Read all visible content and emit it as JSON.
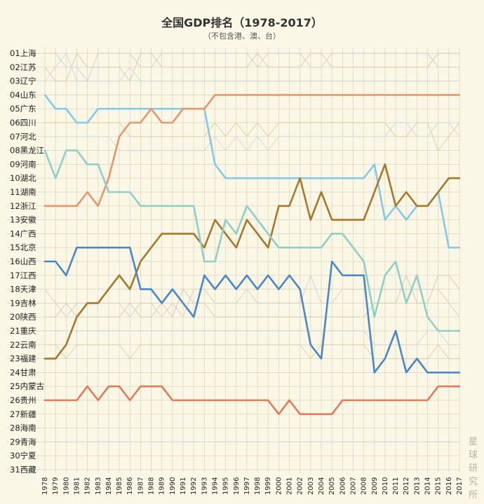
{
  "chart_data": {
    "type": "line",
    "title": "全国GDP排名（1978-2017）",
    "subtitle": "（不包含港、澳、台）",
    "x": [
      1978,
      1979,
      1980,
      1981,
      1982,
      1983,
      1984,
      1985,
      1986,
      1987,
      1988,
      1989,
      1990,
      1991,
      1992,
      1993,
      1994,
      1995,
      1996,
      1997,
      1998,
      1999,
      2000,
      2001,
      2002,
      2003,
      2004,
      2005,
      2006,
      2007,
      2008,
      2009,
      2010,
      2011,
      2012,
      2013,
      2014,
      2015,
      2016,
      2017
    ],
    "y_labels": [
      "01上海",
      "02江苏",
      "03辽宁",
      "04山东",
      "05广东",
      "06四川",
      "07河北",
      "08黑龙江",
      "09河南",
      "10湖北",
      "11湖南",
      "12浙江",
      "13安徽",
      "14广西",
      "15北京",
      "16山西",
      "17江西",
      "18天津",
      "19吉林",
      "20陕西",
      "21重庆",
      "22云南",
      "23福建",
      "24甘肃",
      "25内蒙古",
      "26贵州",
      "27新疆",
      "28海南",
      "29青海",
      "30宁夏",
      "31西藏"
    ],
    "ylim": [
      1,
      31
    ],
    "y_inverted": true,
    "grid": true,
    "series": [
      {
        "color": "#87c8e6",
        "values": [
          4,
          5,
          5,
          6,
          6,
          5,
          5,
          5,
          5,
          5,
          5,
          5,
          5,
          5,
          5,
          5,
          9,
          10,
          10,
          10,
          10,
          10,
          10,
          10,
          10,
          10,
          10,
          10,
          10,
          10,
          10,
          9,
          13,
          12,
          13,
          12,
          12,
          11,
          15,
          15
        ]
      },
      {
        "color": "#e8956c",
        "values": [
          12,
          12,
          12,
          12,
          11,
          12,
          10,
          7,
          6,
          6,
          5,
          6,
          6,
          5,
          5,
          5,
          4,
          4,
          4,
          4,
          4,
          4,
          4,
          4,
          4,
          4,
          4,
          4,
          4,
          4,
          4,
          4,
          4,
          4,
          4,
          4,
          4,
          4,
          4,
          4
        ]
      },
      {
        "color": "#a8782a",
        "values": [
          23,
          23,
          22,
          20,
          19,
          19,
          18,
          17,
          18,
          16,
          15,
          14,
          14,
          14,
          14,
          15,
          13,
          14,
          15,
          13,
          14,
          15,
          12,
          12,
          10,
          13,
          11,
          13,
          13,
          13,
          13,
          11,
          9,
          12,
          11,
          12,
          12,
          11,
          10,
          10
        ]
      },
      {
        "color": "#4a86c8",
        "values": [
          16,
          16,
          17,
          15,
          15,
          15,
          15,
          15,
          15,
          18,
          18,
          19,
          18,
          19,
          20,
          17,
          18,
          17,
          18,
          17,
          18,
          17,
          18,
          17,
          18,
          22,
          23,
          16,
          17,
          17,
          17,
          24,
          23,
          21,
          24,
          23,
          24,
          24,
          24,
          24
        ]
      },
      {
        "color": "#8fcfc6",
        "values": [
          8,
          10,
          8,
          8,
          9,
          9,
          11,
          11,
          11,
          12,
          12,
          12,
          12,
          12,
          12,
          16,
          16,
          13,
          14,
          12,
          13,
          14,
          15,
          15,
          15,
          15,
          15,
          14,
          14,
          15,
          16,
          20,
          17,
          16,
          19,
          17,
          20,
          21,
          21,
          21
        ]
      },
      {
        "color": "#e07a5a",
        "values": [
          26,
          26,
          26,
          26,
          25,
          26,
          25,
          25,
          26,
          25,
          25,
          25,
          26,
          26,
          26,
          26,
          26,
          26,
          26,
          26,
          26,
          26,
          27,
          26,
          27,
          27,
          27,
          27,
          26,
          26,
          26,
          26,
          26,
          26,
          26,
          26,
          26,
          25,
          25,
          25
        ]
      }
    ]
  },
  "watermark": [
    "星",
    "球",
    "研",
    "究",
    "所"
  ]
}
